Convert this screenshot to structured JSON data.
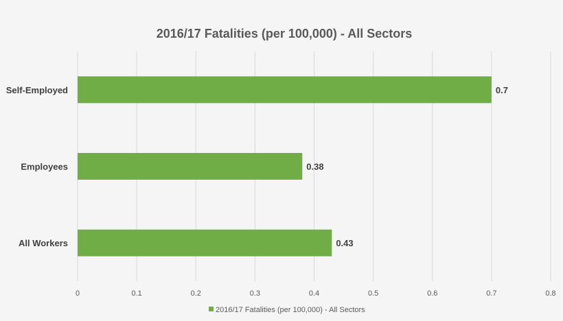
{
  "chart_data": {
    "type": "bar",
    "orientation": "horizontal",
    "title": "2016/17 Fatalities (per 100,000) - All Sectors",
    "categories": [
      "Self-Employed",
      "Employees",
      "All Workers"
    ],
    "series": [
      {
        "name": "2016/17 Fatalities (per 100,000) - All Sectors",
        "values": [
          0.7,
          0.38,
          0.43
        ],
        "color": "#70ad47"
      }
    ],
    "data_labels": [
      "0.7",
      "0.38",
      "0.43"
    ],
    "xlim": [
      0,
      0.8
    ],
    "xticks": [
      "0",
      "0.1",
      "0.2",
      "0.3",
      "0.4",
      "0.5",
      "0.6",
      "0.7",
      "0.8"
    ],
    "grid": "vertical",
    "legend": "bottom",
    "background": "#f5f5f5"
  }
}
